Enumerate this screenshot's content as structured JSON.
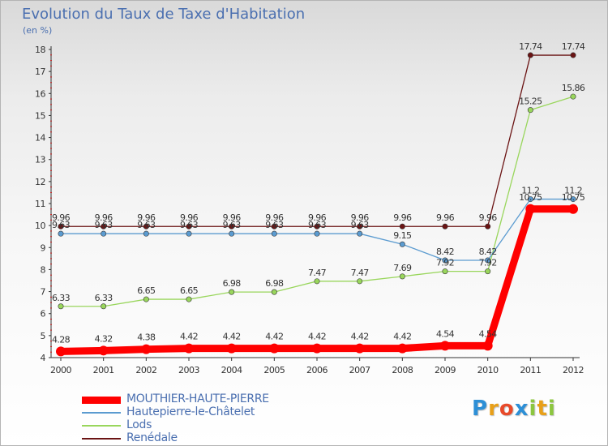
{
  "title": "Evolution du Taux de Taxe d'Habitation",
  "subtitle": "(en %)",
  "logo": {
    "text": "Proxiti",
    "letters": [
      {
        "ch": "P",
        "color": "#2d8fd6"
      },
      {
        "ch": "r",
        "color": "#e8a019"
      },
      {
        "ch": "o",
        "color": "#e84a2a"
      },
      {
        "ch": "x",
        "color": "#2d8fd6"
      },
      {
        "ch": "i",
        "color": "#8cc63f"
      },
      {
        "ch": "t",
        "color": "#e8a019"
      },
      {
        "ch": "i",
        "color": "#8cc63f"
      }
    ]
  },
  "chart_data": {
    "type": "line",
    "title": "Evolution du Taux de Taxe d'Habitation",
    "ylabel": "(en %)",
    "xlabel": "",
    "x": [
      "2000",
      "2001",
      "2002",
      "2003",
      "2004",
      "2005",
      "2006",
      "2007",
      "2008",
      "2009",
      "2010",
      "2011",
      "2012"
    ],
    "ylim": [
      4,
      18
    ],
    "yticks": [
      "4",
      "5",
      "6",
      "7",
      "8",
      "9",
      "10",
      "11",
      "12",
      "13",
      "14",
      "15",
      "16",
      "17",
      "18"
    ],
    "grid": false,
    "legend_position": "bottom-left",
    "series": [
      {
        "name": "Renédale",
        "color": "#6b1414",
        "values": [
          9.96,
          9.96,
          9.96,
          9.96,
          9.96,
          9.96,
          9.96,
          9.96,
          9.96,
          9.96,
          9.96,
          17.74,
          17.74
        ],
        "labels": [
          "9.96",
          "9.96",
          "9.96",
          "9.96",
          "9.96",
          "9.96",
          "9.96",
          "9.96",
          "9.96",
          "9.96",
          "9.96",
          "17.74",
          "17.74"
        ]
      },
      {
        "name": "Lods",
        "color": "#99d65c",
        "values": [
          6.33,
          6.33,
          6.65,
          6.65,
          6.98,
          6.98,
          7.47,
          7.47,
          7.69,
          7.92,
          7.92,
          15.25,
          15.86
        ],
        "labels": [
          "6.33",
          "6.33",
          "6.65",
          "6.65",
          "6.98",
          "6.98",
          "7.47",
          "7.47",
          "7.69",
          "7.92",
          "7.92",
          "15.25",
          "15.86"
        ]
      },
      {
        "name": "Hautepierre-le-Châtelet",
        "color": "#5b9bd0",
        "values": [
          9.63,
          9.63,
          9.63,
          9.63,
          9.63,
          9.63,
          9.63,
          9.63,
          9.15,
          8.42,
          8.42,
          11.2,
          11.2
        ],
        "labels": [
          "9.63",
          "9.63",
          "9.63",
          "9.63",
          "9.63",
          "9.63",
          "9.63",
          "9.63",
          "9.15",
          "8.42",
          "8.42",
          "11.2",
          "11.2"
        ]
      },
      {
        "name": "MOUTHIER-HAUTE-PIERRE",
        "color": "#ff0000",
        "values": [
          4.28,
          4.32,
          4.38,
          4.42,
          4.42,
          4.42,
          4.42,
          4.42,
          4.42,
          4.54,
          4.54,
          10.75,
          10.75
        ],
        "labels": [
          "4.28",
          "4.32",
          "4.38",
          "4.42",
          "4.42",
          "4.42",
          "4.42",
          "4.42",
          "4.42",
          "4.54",
          "4.54",
          "10.75",
          "10.75"
        ]
      }
    ]
  },
  "legend": [
    {
      "name": "MOUTHIER-HAUTE-PIERRE",
      "color": "#ff0000",
      "thick": true
    },
    {
      "name": "Hautepierre-le-Châtelet",
      "color": "#5b9bd0",
      "thick": false
    },
    {
      "name": "Lods",
      "color": "#99d65c",
      "thick": false
    },
    {
      "name": "Renédale",
      "color": "#6b1414",
      "thick": false
    }
  ]
}
